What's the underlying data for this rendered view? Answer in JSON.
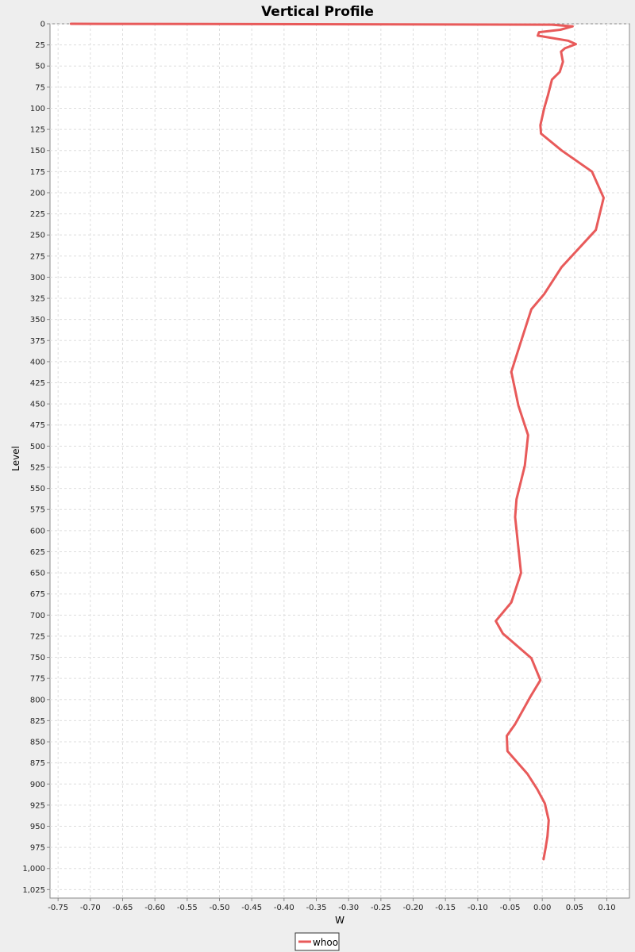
{
  "chart_data": {
    "type": "line",
    "title": "Vertical Profile",
    "xlabel": "W",
    "ylabel": "Level",
    "xlim": [
      -0.7625,
      0.135
    ],
    "ylim": [
      1035,
      0
    ],
    "y_inverted": true,
    "x_ticks": [
      "-0.75",
      "-0.70",
      "-0.65",
      "-0.60",
      "-0.55",
      "-0.50",
      "-0.45",
      "-0.40",
      "-0.35",
      "-0.30",
      "-0.25",
      "-0.20",
      "-0.15",
      "-0.10",
      "-0.05",
      "0.00",
      "0.05",
      "0.10"
    ],
    "x_tick_values": [
      -0.75,
      -0.7,
      -0.65,
      -0.6,
      -0.55,
      -0.5,
      -0.45,
      -0.4,
      -0.35,
      -0.3,
      -0.25,
      -0.2,
      -0.15,
      -0.1,
      -0.05,
      0.0,
      0.05,
      0.1
    ],
    "y_ticks": [
      "0",
      "25",
      "50",
      "75",
      "100",
      "125",
      "150",
      "175",
      "200",
      "225",
      "250",
      "275",
      "300",
      "325",
      "350",
      "375",
      "400",
      "425",
      "450",
      "475",
      "500",
      "525",
      "550",
      "575",
      "600",
      "625",
      "650",
      "675",
      "700",
      "725",
      "750",
      "775",
      "800",
      "825",
      "850",
      "875",
      "900",
      "925",
      "950",
      "975",
      "1,000",
      "1,025"
    ],
    "y_tick_values": [
      0,
      25,
      50,
      75,
      100,
      125,
      150,
      175,
      200,
      225,
      250,
      275,
      300,
      325,
      350,
      375,
      400,
      425,
      450,
      475,
      500,
      525,
      550,
      575,
      600,
      625,
      650,
      675,
      700,
      725,
      750,
      775,
      800,
      825,
      850,
      875,
      900,
      925,
      950,
      975,
      1000,
      1025
    ],
    "grid": true,
    "legend": "bottom-center",
    "series": [
      {
        "name": "whoo",
        "color": "#e85a5a",
        "points": [
          [
            -0.73,
            0
          ],
          [
            0.015,
            1
          ],
          [
            0.047,
            3
          ],
          [
            0.028,
            7
          ],
          [
            -0.005,
            10
          ],
          [
            -0.007,
            14
          ],
          [
            0.04,
            20
          ],
          [
            0.052,
            24
          ],
          [
            0.035,
            29
          ],
          [
            0.029,
            33
          ],
          [
            0.032,
            45
          ],
          [
            0.027,
            57
          ],
          [
            0.015,
            66
          ],
          [
            0.009,
            84
          ],
          [
            0.003,
            100
          ],
          [
            -0.003,
            120
          ],
          [
            -0.002,
            130
          ],
          [
            0.03,
            150
          ],
          [
            0.077,
            175
          ],
          [
            0.095,
            206
          ],
          [
            0.083,
            244
          ],
          [
            0.03,
            288
          ],
          [
            0.003,
            320
          ],
          [
            -0.017,
            338
          ],
          [
            -0.033,
            376
          ],
          [
            -0.048,
            412
          ],
          [
            -0.037,
            452
          ],
          [
            -0.022,
            487
          ],
          [
            -0.027,
            523
          ],
          [
            -0.04,
            563
          ],
          [
            -0.042,
            584
          ],
          [
            -0.033,
            650
          ],
          [
            -0.048,
            685
          ],
          [
            -0.072,
            707
          ],
          [
            -0.061,
            722
          ],
          [
            -0.017,
            751
          ],
          [
            -0.003,
            777
          ],
          [
            -0.018,
            796
          ],
          [
            -0.042,
            829
          ],
          [
            -0.055,
            843
          ],
          [
            -0.054,
            861
          ],
          [
            -0.023,
            888
          ],
          [
            -0.008,
            906
          ],
          [
            0.004,
            923
          ],
          [
            0.01,
            943
          ],
          [
            0.008,
            962
          ],
          [
            0.005,
            976
          ],
          [
            0.002,
            989
          ]
        ]
      }
    ]
  }
}
